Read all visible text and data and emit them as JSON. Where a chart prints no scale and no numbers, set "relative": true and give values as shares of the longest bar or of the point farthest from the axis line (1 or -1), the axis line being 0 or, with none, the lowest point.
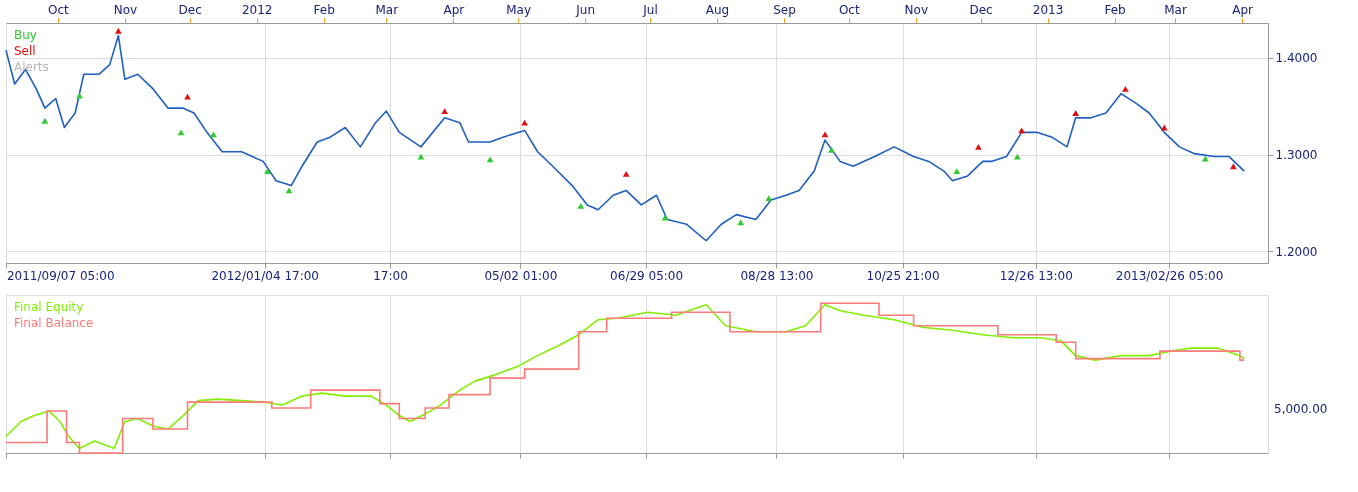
{
  "chart_data": [
    {
      "type": "line",
      "xlim": [
        "2011-09-07",
        "2013-04-13"
      ],
      "ylim": [
        1.188,
        1.436
      ],
      "yticks": [
        {
          "value": 1.2,
          "label": "1.2000"
        },
        {
          "value": 1.3,
          "label": "1.3000"
        },
        {
          "value": 1.4,
          "label": "1.4000"
        }
      ],
      "xticks": [
        {
          "value": "2011-09-07T05:00",
          "label": "2011/09/07 05:00"
        },
        {
          "value": "2012-01-04T17:00",
          "label": "2012/01/04 17:00"
        },
        {
          "value": "2012-03-02T17:00",
          "label": "17:00"
        },
        {
          "value": "2012-05-02T01:00",
          "label": "05/02 01:00"
        },
        {
          "value": "2012-06-29T05:00",
          "label": "06/29 05:00"
        },
        {
          "value": "2012-08-28T13:00",
          "label": "08/28 13:00"
        },
        {
          "value": "2012-10-25T21:00",
          "label": "10/25 21:00"
        },
        {
          "value": "2012-12-26T13:00",
          "label": "12/26 13:00"
        },
        {
          "value": "2013-02-26T05:00",
          "label": "2013/02/26 05:00"
        }
      ],
      "x2lim": [
        "2011-09-07",
        "2013-04-13"
      ],
      "x2ticks": [
        {
          "value": "2011-10-01",
          "label": "Oct"
        },
        {
          "value": "2011-11-01",
          "label": "Nov"
        },
        {
          "value": "2011-12-01",
          "label": "Dec"
        },
        {
          "value": "2012-01-01",
          "label": "2012"
        },
        {
          "value": "2012-02-01",
          "label": "Feb"
        },
        {
          "value": "2012-03-01",
          "label": "Mar"
        },
        {
          "value": "2012-04-01",
          "label": "Apr"
        },
        {
          "value": "2012-05-01",
          "label": "May"
        },
        {
          "value": "2012-06-01",
          "label": "Jun"
        },
        {
          "value": "2012-07-01",
          "label": "Jul"
        },
        {
          "value": "2012-08-01",
          "label": "Aug"
        },
        {
          "value": "2012-09-01",
          "label": "Sep"
        },
        {
          "value": "2012-10-01",
          "label": "Oct"
        },
        {
          "value": "2012-11-01",
          "label": "Nov"
        },
        {
          "value": "2012-12-01",
          "label": "Dec"
        },
        {
          "value": "2013-01-01",
          "label": "2013"
        },
        {
          "value": "2013-02-01",
          "label": "Feb"
        },
        {
          "value": "2013-03-01",
          "label": "Mar"
        },
        {
          "value": "2013-04-01",
          "label": "Apr"
        }
      ],
      "grid": true,
      "series": [
        {
          "color": "#1f5fbf",
          "line_style": "solid",
          "x": [
            "2011-09-07",
            "2011-09-11",
            "2011-09-16",
            "2011-09-21",
            "2011-09-25",
            "2011-09-30",
            "2011-10-04",
            "2011-10-09",
            "2011-10-13",
            "2011-10-20",
            "2011-10-25",
            "2011-10-29",
            "2011-11-01",
            "2011-11-07",
            "2011-11-14",
            "2011-11-21",
            "2011-11-28",
            "2011-12-03",
            "2011-12-09",
            "2011-12-16",
            "2011-12-25",
            "2012-01-04",
            "2012-01-10",
            "2012-01-17",
            "2012-01-22",
            "2012-01-29",
            "2012-02-04",
            "2012-02-11",
            "2012-02-18",
            "2012-02-25",
            "2012-03-01",
            "2012-03-07",
            "2012-03-17",
            "2012-03-28",
            "2012-04-04",
            "2012-04-08",
            "2012-04-18",
            "2012-04-24",
            "2012-05-04",
            "2012-05-10",
            "2012-05-17",
            "2012-05-26",
            "2012-06-02",
            "2012-06-07",
            "2012-06-14",
            "2012-06-20",
            "2012-06-27",
            "2012-07-04",
            "2012-07-09",
            "2012-07-18",
            "2012-07-27",
            "2012-08-03",
            "2012-08-10",
            "2012-08-19",
            "2012-08-26",
            "2012-09-02",
            "2012-09-08",
            "2012-09-15",
            "2012-09-20",
            "2012-09-27",
            "2012-10-03",
            "2012-10-13",
            "2012-10-22",
            "2012-10-31",
            "2012-11-07",
            "2012-11-14",
            "2012-11-18",
            "2012-11-25",
            "2012-12-02",
            "2012-12-06",
            "2012-12-13",
            "2012-12-20",
            "2012-12-27",
            "2013-01-03",
            "2013-01-10",
            "2013-01-14",
            "2013-01-21",
            "2013-01-28",
            "2013-02-04",
            "2013-02-11",
            "2013-02-17",
            "2013-02-24",
            "2013-03-03",
            "2013-03-10",
            "2013-03-19",
            "2013-03-26",
            "2013-04-02"
          ],
          "values": [
            1.408,
            1.373,
            1.388,
            1.368,
            1.348,
            1.358,
            1.328,
            1.343,
            1.383,
            1.383,
            1.393,
            1.423,
            1.378,
            1.383,
            1.368,
            1.348,
            1.348,
            1.343,
            1.323,
            1.303,
            1.303,
            1.293,
            1.273,
            1.268,
            1.288,
            1.313,
            1.318,
            1.328,
            1.308,
            1.333,
            1.345,
            1.323,
            1.308,
            1.338,
            1.333,
            1.313,
            1.313,
            1.318,
            1.325,
            1.303,
            1.288,
            1.268,
            1.248,
            1.243,
            1.258,
            1.263,
            1.248,
            1.258,
            1.233,
            1.228,
            1.211,
            1.228,
            1.238,
            1.233,
            1.253,
            1.258,
            1.263,
            1.283,
            1.315,
            1.293,
            1.288,
            1.298,
            1.308,
            1.298,
            1.293,
            1.283,
            1.273,
            1.278,
            1.293,
            1.293,
            1.298,
            1.323,
            1.323,
            1.318,
            1.308,
            1.338,
            1.338,
            1.343,
            1.363,
            1.353,
            1.343,
            1.323,
            1.308,
            1.301,
            1.298,
            1.298,
            1.283
          ]
        },
        {
          "name": "Buy",
          "color": "#2ecc2e",
          "type": "scatter",
          "marker": "triangle",
          "x": [
            "2011-09-25",
            "2011-10-11",
            "2011-11-27",
            "2011-12-12",
            "2012-01-06",
            "2012-01-16",
            "2012-03-17",
            "2012-04-18",
            "2012-05-30",
            "2012-07-08",
            "2012-08-12",
            "2012-08-25",
            "2012-09-23",
            "2012-11-20",
            "2012-12-18",
            "2013-03-15"
          ],
          "values": [
            1.335,
            1.361,
            1.323,
            1.321,
            1.283,
            1.263,
            1.298,
            1.295,
            1.247,
            1.235,
            1.23,
            1.255,
            1.305,
            1.283,
            1.298,
            1.296
          ]
        },
        {
          "name": "Sell",
          "color": "#e01010",
          "type": "scatter",
          "marker": "triangle",
          "x": [
            "2011-10-29",
            "2011-11-30",
            "2012-03-28",
            "2012-05-04",
            "2012-06-20",
            "2012-09-20",
            "2012-11-30",
            "2012-12-20",
            "2013-01-14",
            "2013-02-06",
            "2013-02-24",
            "2013-03-28"
          ],
          "values": [
            1.428,
            1.36,
            1.345,
            1.333,
            1.28,
            1.321,
            1.308,
            1.325,
            1.343,
            1.368,
            1.328,
            1.288
          ]
        },
        {
          "name": "Alerts",
          "color": "#b8b8b8",
          "type": "scatter"
        }
      ]
    },
    {
      "type": "line",
      "relative": true,
      "xlim": [
        "2011-09-07",
        "2013-04-13"
      ],
      "grid": "x",
      "tick_labels": false,
      "annotations": [
        "5,000.00"
      ],
      "series": [
        {
          "name": "Final Equity",
          "color": "#80f000",
          "x": [
            "2011-09-07",
            "2011-09-14",
            "2011-09-20",
            "2011-09-27",
            "2011-10-02",
            "2011-10-06",
            "2011-10-11",
            "2011-10-18",
            "2011-10-27",
            "2011-11-01",
            "2011-11-07",
            "2011-11-14",
            "2011-11-21",
            "2011-11-28",
            "2011-12-05",
            "2011-12-14",
            "2011-12-25",
            "2012-01-04",
            "2012-01-13",
            "2012-01-22",
            "2012-01-31",
            "2012-02-11",
            "2012-02-23",
            "2012-03-01",
            "2012-03-07",
            "2012-03-12",
            "2012-03-19",
            "2012-03-26",
            "2012-04-04",
            "2012-04-11",
            "2012-04-20",
            "2012-05-01",
            "2012-05-10",
            "2012-05-20",
            "2012-05-29",
            "2012-06-07",
            "2012-06-16",
            "2012-06-30",
            "2012-07-13",
            "2012-07-27",
            "2012-08-05",
            "2012-08-19",
            "2012-09-02",
            "2012-09-11",
            "2012-09-20",
            "2012-09-27",
            "2012-10-08",
            "2012-10-22",
            "2012-11-04",
            "2012-11-18",
            "2012-12-02",
            "2012-12-16",
            "2012-12-29",
            "2013-01-07",
            "2013-01-14",
            "2013-01-23",
            "2013-02-04",
            "2013-02-17",
            "2013-02-27",
            "2013-03-08",
            "2013-03-21",
            "2013-03-31",
            "2013-04-02"
          ],
          "values": [
            0.11,
            0.21,
            0.25,
            0.28,
            0.21,
            0.11,
            0.03,
            0.08,
            0.03,
            0.21,
            0.23,
            0.18,
            0.16,
            0.25,
            0.35,
            0.36,
            0.35,
            0.34,
            0.32,
            0.38,
            0.4,
            0.38,
            0.38,
            0.32,
            0.25,
            0.21,
            0.26,
            0.32,
            0.42,
            0.48,
            0.52,
            0.58,
            0.65,
            0.72,
            0.79,
            0.89,
            0.9,
            0.94,
            0.92,
            0.99,
            0.85,
            0.81,
            0.81,
            0.85,
            0.99,
            0.95,
            0.92,
            0.89,
            0.84,
            0.82,
            0.79,
            0.77,
            0.77,
            0.75,
            0.65,
            0.62,
            0.65,
            0.65,
            0.68,
            0.7,
            0.7,
            0.65,
            0.63
          ]
        },
        {
          "name": "Final Balance",
          "color": "#ff7a7a",
          "type": "step",
          "x": [
            "2011-09-07",
            "2011-09-26",
            "2011-10-05",
            "2011-10-11",
            "2011-10-31",
            "2011-11-14",
            "2011-11-30",
            "2012-01-08",
            "2012-01-26",
            "2012-02-27",
            "2012-03-07",
            "2012-03-19",
            "2012-03-30",
            "2012-04-18",
            "2012-05-04",
            "2012-05-29",
            "2012-06-11",
            "2012-07-11",
            "2012-08-07",
            "2012-09-18",
            "2012-10-15",
            "2012-10-31",
            "2012-12-09",
            "2013-01-05",
            "2013-01-14",
            "2013-02-22",
            "2013-03-31",
            "2013-04-02"
          ],
          "values": [
            0.07,
            0.28,
            0.07,
            0.0,
            0.23,
            0.16,
            0.34,
            0.3,
            0.42,
            0.33,
            0.23,
            0.3,
            0.39,
            0.5,
            0.56,
            0.81,
            0.9,
            0.94,
            0.81,
            1.0,
            0.92,
            0.85,
            0.79,
            0.74,
            0.63,
            0.68,
            0.62,
            0.62
          ]
        }
      ]
    }
  ]
}
